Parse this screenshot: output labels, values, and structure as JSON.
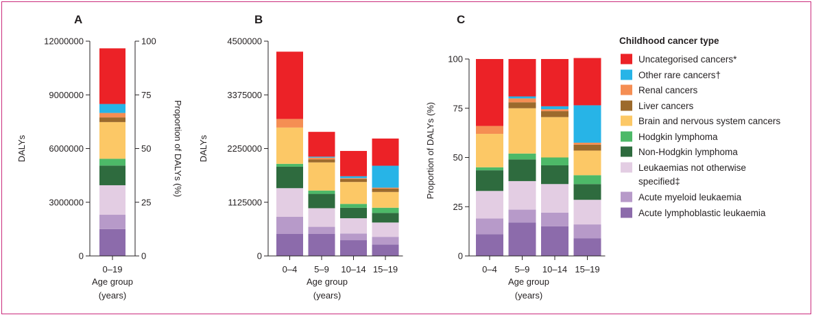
{
  "legend": {
    "title": "Childhood cancer type",
    "items": [
      {
        "label": "Uncategorised cancers*",
        "color": "#ec2227"
      },
      {
        "label": "Other rare cancers†",
        "color": "#27b4e7"
      },
      {
        "label": "Renal cancers",
        "color": "#f58e53"
      },
      {
        "label": "Liver cancers",
        "color": "#9c6a2c"
      },
      {
        "label": "Brain and nervous system cancers",
        "color": "#fcc866"
      },
      {
        "label": "Hodgkin lymphoma",
        "color": "#4db968"
      },
      {
        "label": "Non-Hodgkin lymphoma",
        "color": "#2e6b3e"
      },
      {
        "label": "Leukaemias not otherwise specified‡",
        "label_lines": [
          "Leukaemias not otherwise",
          "specified‡"
        ],
        "color": "#e3cde3"
      },
      {
        "label": "Acute myeloid leukaemia",
        "color": "#b79ac9"
      },
      {
        "label": "Acute lymphoblastic leukaemia",
        "color": "#8c6bab"
      }
    ]
  },
  "chart_data": [
    {
      "panel": "A",
      "type": "bar",
      "stacked": true,
      "categories": [
        "0–19"
      ],
      "xlabel": "Age group (years)",
      "xlabel_lines": [
        "Age group",
        "(years)"
      ],
      "ylabel": "DALYs",
      "ylabel_right": "Proportion of DALYs (%)",
      "ylim": [
        0,
        12000000
      ],
      "yticks": [
        0,
        3000000,
        6000000,
        9000000,
        12000000
      ],
      "ytick_labels": [
        "0",
        "3000000",
        "6000000",
        "9000000",
        "12000000"
      ],
      "ylim_right": [
        0,
        100
      ],
      "yticks_right": [
        0,
        25,
        50,
        75,
        100
      ],
      "ytick_labels_right": [
        "0",
        "25",
        "50",
        "75",
        "100"
      ],
      "series": [
        {
          "name": "Acute lymphoblastic leukaemia",
          "values": [
            1500000
          ]
        },
        {
          "name": "Acute myeloid leukaemia",
          "values": [
            800000
          ]
        },
        {
          "name": "Leukaemias not otherwise specified‡",
          "values": [
            1650000
          ]
        },
        {
          "name": "Non-Hodgkin lymphoma",
          "values": [
            1100000
          ]
        },
        {
          "name": "Hodgkin lymphoma",
          "values": [
            380000
          ]
        },
        {
          "name": "Brain and nervous system cancers",
          "values": [
            2050000
          ]
        },
        {
          "name": "Liver cancers",
          "values": [
            260000
          ]
        },
        {
          "name": "Renal cancers",
          "values": [
            250000
          ]
        },
        {
          "name": "Other rare cancers†",
          "values": [
            500000
          ]
        },
        {
          "name": "Uncategorised cancers*",
          "values": [
            3110000
          ]
        }
      ]
    },
    {
      "panel": "B",
      "type": "bar",
      "stacked": true,
      "categories": [
        "0–4",
        "5–9",
        "10–14",
        "15–19"
      ],
      "xlabel": "Age group (years)",
      "xlabel_lines": [
        "Age group",
        "(years)"
      ],
      "ylabel": "DALYs",
      "ylim": [
        0,
        4500000
      ],
      "yticks": [
        0,
        1125000,
        2250000,
        3375000,
        4500000
      ],
      "ytick_labels": [
        "0",
        "1125000",
        "2250000",
        "3375000",
        "4500000"
      ],
      "series": [
        {
          "name": "Acute lymphoblastic leukaemia",
          "values": [
            460000,
            460000,
            330000,
            240000
          ]
        },
        {
          "name": "Acute myeloid leukaemia",
          "values": [
            360000,
            150000,
            140000,
            160000
          ]
        },
        {
          "name": "Leukaemias not otherwise specified‡",
          "values": [
            600000,
            390000,
            320000,
            300000
          ]
        },
        {
          "name": "Non-Hodgkin lymphoma",
          "values": [
            450000,
            300000,
            220000,
            200000
          ]
        },
        {
          "name": "Hodgkin lymphoma",
          "values": [
            60000,
            70000,
            80000,
            110000
          ]
        },
        {
          "name": "Brain and nervous system cancers",
          "values": [
            760000,
            590000,
            460000,
            330000
          ]
        },
        {
          "name": "Liver cancers",
          "values": [
            0,
            60000,
            60000,
            70000
          ]
        },
        {
          "name": "Renal cancers",
          "values": [
            180000,
            40000,
            20000,
            20000
          ]
        },
        {
          "name": "Other rare cancers†",
          "values": [
            0,
            20000,
            40000,
            460000
          ]
        },
        {
          "name": "Uncategorised cancers*",
          "values": [
            1410000,
            520000,
            530000,
            570000
          ]
        }
      ]
    },
    {
      "panel": "C",
      "type": "bar",
      "stacked": true,
      "categories": [
        "0–4",
        "5–9",
        "10–14",
        "15–19"
      ],
      "xlabel": "Age group (years)",
      "xlabel_lines": [
        "Age group",
        "(years)"
      ],
      "ylabel": "Proportion of DALYs (%)",
      "ylim": [
        0,
        100
      ],
      "yticks": [
        0,
        25,
        50,
        75,
        100
      ],
      "ytick_labels": [
        "0",
        "25",
        "50",
        "75",
        "100"
      ],
      "series": [
        {
          "name": "Acute lymphoblastic leukaemia",
          "values": [
            11,
            17,
            15,
            9
          ]
        },
        {
          "name": "Acute myeloid leukaemia",
          "values": [
            8,
            6.5,
            7,
            7
          ]
        },
        {
          "name": "Leukaemias not otherwise specified‡",
          "values": [
            14,
            14.5,
            14.5,
            12.5
          ]
        },
        {
          "name": "Non-Hodgkin lymphoma",
          "values": [
            10.5,
            11,
            9.5,
            8
          ]
        },
        {
          "name": "Hodgkin lymphoma",
          "values": [
            1.5,
            3,
            4,
            4.5
          ]
        },
        {
          "name": "Brain and nervous system cancers",
          "values": [
            17,
            23,
            20.5,
            12.5
          ]
        },
        {
          "name": "Liver cancers",
          "values": [
            0,
            3,
            3,
            3
          ]
        },
        {
          "name": "Renal cancers",
          "values": [
            4,
            2,
            1,
            1
          ]
        },
        {
          "name": "Other rare cancers†",
          "values": [
            0,
            1,
            1.5,
            19
          ]
        },
        {
          "name": "Uncategorised cancers*",
          "values": [
            34,
            19,
            24,
            24
          ]
        }
      ]
    }
  ]
}
